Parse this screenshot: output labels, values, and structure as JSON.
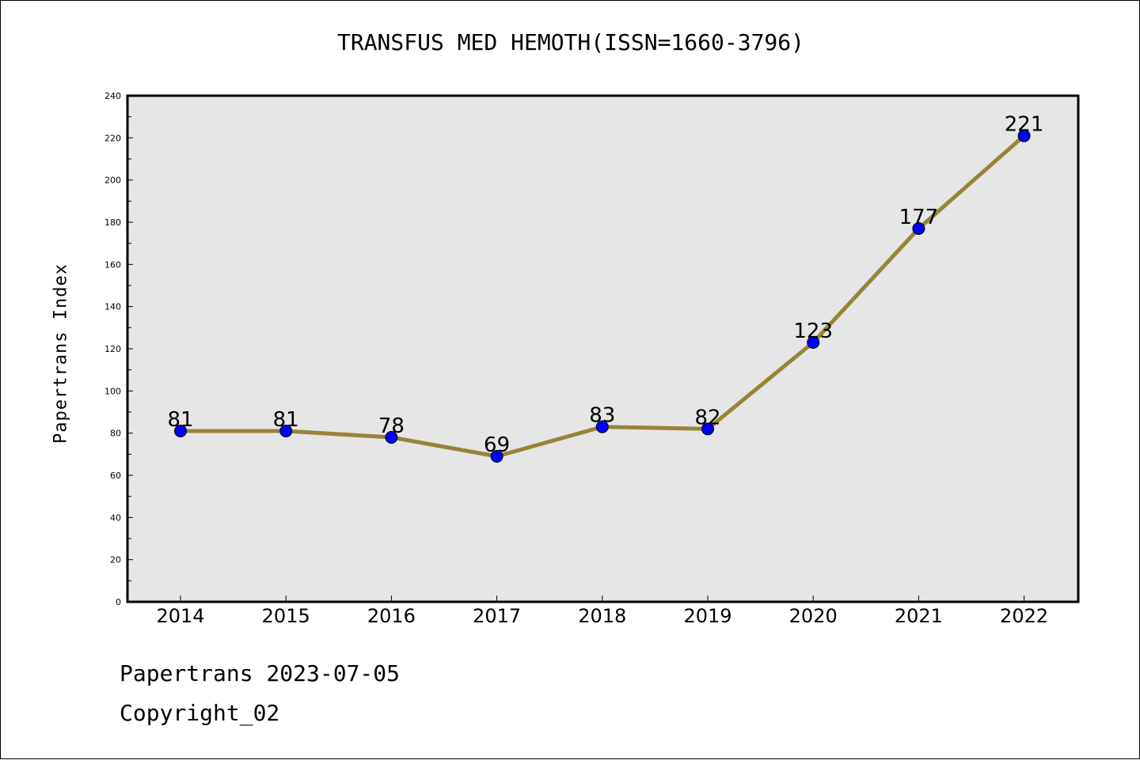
{
  "footer": {
    "line1": "Papertrans 2023-07-05",
    "line2": "Copyright_02"
  },
  "chart_data": {
    "type": "line",
    "title": "TRANSFUS MED HEMOTH(ISSN=1660-3796)",
    "xlabel": "",
    "ylabel": "Papertrans Index",
    "categories": [
      "2014",
      "2015",
      "2016",
      "2017",
      "2018",
      "2019",
      "2020",
      "2021",
      "2022"
    ],
    "values": [
      81,
      81,
      78,
      69,
      83,
      82,
      123,
      177,
      221
    ],
    "data_labels": [
      "81",
      "81",
      "78",
      "69",
      "83",
      "82",
      "123",
      "177",
      "221"
    ],
    "ylim": [
      0,
      240
    ],
    "yticks": [
      0,
      20,
      40,
      60,
      80,
      100,
      120,
      140,
      160,
      180,
      200,
      220,
      240
    ],
    "grid": false,
    "legend": "none",
    "colors": {
      "line": "#978437",
      "marker": "#0000ff",
      "plot_background": "#e6e6e6",
      "axes": "#000000"
    }
  }
}
